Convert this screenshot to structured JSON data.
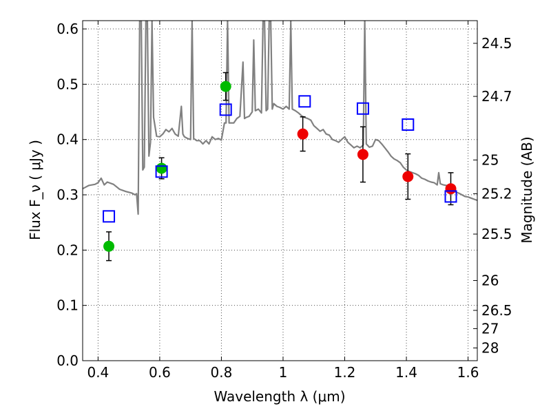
{
  "chart_data": {
    "type": "scatter",
    "xlabel": "Wavelength  λ (μm)",
    "ylabel": "Flux  F_ν  ( μJy )",
    "y2label": "Magnitude (AB)",
    "xlim": [
      0.35,
      1.63
    ],
    "ylim": [
      0.0,
      0.615
    ],
    "grid": true,
    "x_ticks": [
      0.4,
      0.6,
      0.8,
      1.0,
      1.2,
      1.4,
      1.6
    ],
    "x_tick_labels": [
      "0.4",
      "0.6",
      "0.8",
      "1",
      "1.2",
      "1.4",
      "1.6"
    ],
    "y_ticks": [
      0.0,
      0.1,
      0.2,
      0.3,
      0.4,
      0.5,
      0.6
    ],
    "y_tick_labels": [
      "0.0",
      "0.1",
      "0.2",
      "0.3",
      "0.4",
      "0.5",
      "0.6"
    ],
    "y2_ticks": [
      {
        "label": "24.5",
        "flux": 0.574
      },
      {
        "label": "24.7",
        "flux": 0.478
      },
      {
        "label": "25",
        "flux": 0.363
      },
      {
        "label": "25.2",
        "flux": 0.302
      },
      {
        "label": "25.5",
        "flux": 0.229
      },
      {
        "label": "26",
        "flux": 0.145
      },
      {
        "label": "26.5",
        "flux": 0.091
      },
      {
        "label": "27",
        "flux": 0.058
      },
      {
        "label": "28",
        "flux": 0.023
      }
    ],
    "series": [
      {
        "marker": "circle",
        "color": "#00bb00",
        "points": [
          {
            "x": 0.435,
            "y": 0.207,
            "err": 0.026
          },
          {
            "x": 0.606,
            "y": 0.348,
            "err": 0.019
          },
          {
            "x": 0.814,
            "y": 0.496,
            "err": 0.025
          }
        ]
      },
      {
        "marker": "circle",
        "color": "#ee0000",
        "points": [
          {
            "x": 1.064,
            "y": 0.41,
            "err": 0.031
          },
          {
            "x": 1.259,
            "y": 0.373,
            "err": 0.05
          },
          {
            "x": 1.405,
            "y": 0.333,
            "err": 0.041
          },
          {
            "x": 1.544,
            "y": 0.311,
            "err": 0.029
          }
        ]
      },
      {
        "marker": "open-square",
        "color": "#0000ff",
        "points": [
          {
            "x": 0.435,
            "y": 0.261
          },
          {
            "x": 0.606,
            "y": 0.342
          },
          {
            "x": 0.814,
            "y": 0.454
          },
          {
            "x": 1.07,
            "y": 0.469
          },
          {
            "x": 1.259,
            "y": 0.456
          },
          {
            "x": 1.405,
            "y": 0.427
          },
          {
            "x": 1.544,
            "y": 0.297
          }
        ]
      },
      {
        "marker": "line",
        "color": "#808080",
        "points": [
          [
            0.35,
            0.311
          ],
          [
            0.37,
            0.317
          ],
          [
            0.39,
            0.319
          ],
          [
            0.4,
            0.322
          ],
          [
            0.41,
            0.33
          ],
          [
            0.42,
            0.318
          ],
          [
            0.43,
            0.323
          ],
          [
            0.45,
            0.319
          ],
          [
            0.47,
            0.31
          ],
          [
            0.49,
            0.306
          ],
          [
            0.51,
            0.303
          ],
          [
            0.52,
            0.3
          ],
          [
            0.525,
            0.302
          ],
          [
            0.53,
            0.265
          ],
          [
            0.535,
            0.615
          ],
          [
            0.54,
            0.615
          ],
          [
            0.545,
            0.345
          ],
          [
            0.55,
            0.35
          ],
          [
            0.555,
            0.615
          ],
          [
            0.56,
            0.615
          ],
          [
            0.565,
            0.37
          ],
          [
            0.57,
            0.395
          ],
          [
            0.575,
            0.615
          ],
          [
            0.58,
            0.44
          ],
          [
            0.59,
            0.406
          ],
          [
            0.6,
            0.405
          ],
          [
            0.61,
            0.41
          ],
          [
            0.62,
            0.418
          ],
          [
            0.63,
            0.414
          ],
          [
            0.64,
            0.42
          ],
          [
            0.65,
            0.41
          ],
          [
            0.66,
            0.406
          ],
          [
            0.67,
            0.46
          ],
          [
            0.675,
            0.41
          ],
          [
            0.68,
            0.405
          ],
          [
            0.69,
            0.402
          ],
          [
            0.7,
            0.4
          ],
          [
            0.705,
            0.615
          ],
          [
            0.71,
            0.402
          ],
          [
            0.72,
            0.398
          ],
          [
            0.73,
            0.398
          ],
          [
            0.74,
            0.392
          ],
          [
            0.75,
            0.398
          ],
          [
            0.76,
            0.392
          ],
          [
            0.77,
            0.405
          ],
          [
            0.78,
            0.4
          ],
          [
            0.79,
            0.402
          ],
          [
            0.8,
            0.399
          ],
          [
            0.81,
            0.43
          ],
          [
            0.815,
            0.43
          ],
          [
            0.82,
            0.615
          ],
          [
            0.825,
            0.43
          ],
          [
            0.83,
            0.43
          ],
          [
            0.84,
            0.43
          ],
          [
            0.85,
            0.438
          ],
          [
            0.86,
            0.442
          ],
          [
            0.87,
            0.54
          ],
          [
            0.875,
            0.438
          ],
          [
            0.88,
            0.44
          ],
          [
            0.89,
            0.442
          ],
          [
            0.9,
            0.45
          ],
          [
            0.905,
            0.58
          ],
          [
            0.91,
            0.452
          ],
          [
            0.92,
            0.455
          ],
          [
            0.93,
            0.448
          ],
          [
            0.935,
            0.615
          ],
          [
            0.94,
            0.615
          ],
          [
            0.945,
            0.452
          ],
          [
            0.95,
            0.455
          ],
          [
            0.955,
            0.615
          ],
          [
            0.96,
            0.615
          ],
          [
            0.965,
            0.455
          ],
          [
            0.97,
            0.465
          ],
          [
            0.98,
            0.46
          ],
          [
            0.99,
            0.458
          ],
          [
            1.0,
            0.455
          ],
          [
            1.01,
            0.46
          ],
          [
            1.02,
            0.455
          ],
          [
            1.025,
            0.615
          ],
          [
            1.03,
            0.455
          ],
          [
            1.04,
            0.452
          ],
          [
            1.05,
            0.448
          ],
          [
            1.06,
            0.443
          ],
          [
            1.07,
            0.44
          ],
          [
            1.08,
            0.438
          ],
          [
            1.09,
            0.435
          ],
          [
            1.1,
            0.425
          ],
          [
            1.11,
            0.42
          ],
          [
            1.12,
            0.415
          ],
          [
            1.13,
            0.418
          ],
          [
            1.14,
            0.41
          ],
          [
            1.15,
            0.408
          ],
          [
            1.16,
            0.4
          ],
          [
            1.17,
            0.398
          ],
          [
            1.18,
            0.395
          ],
          [
            1.19,
            0.4
          ],
          [
            1.2,
            0.405
          ],
          [
            1.21,
            0.395
          ],
          [
            1.22,
            0.39
          ],
          [
            1.23,
            0.385
          ],
          [
            1.24,
            0.388
          ],
          [
            1.25,
            0.385
          ],
          [
            1.26,
            0.39
          ],
          [
            1.265,
            0.615
          ],
          [
            1.27,
            0.392
          ],
          [
            1.28,
            0.386
          ],
          [
            1.29,
            0.388
          ],
          [
            1.3,
            0.4
          ],
          [
            1.31,
            0.398
          ],
          [
            1.32,
            0.392
          ],
          [
            1.33,
            0.385
          ],
          [
            1.34,
            0.378
          ],
          [
            1.35,
            0.37
          ],
          [
            1.36,
            0.365
          ],
          [
            1.37,
            0.362
          ],
          [
            1.38,
            0.358
          ],
          [
            1.39,
            0.35
          ],
          [
            1.4,
            0.345
          ],
          [
            1.41,
            0.342
          ],
          [
            1.42,
            0.34
          ],
          [
            1.43,
            0.338
          ],
          [
            1.44,
            0.335
          ],
          [
            1.45,
            0.33
          ],
          [
            1.46,
            0.328
          ],
          [
            1.47,
            0.325
          ],
          [
            1.48,
            0.323
          ],
          [
            1.49,
            0.322
          ],
          [
            1.5,
            0.318
          ],
          [
            1.505,
            0.34
          ],
          [
            1.51,
            0.32
          ],
          [
            1.52,
            0.318
          ],
          [
            1.53,
            0.317
          ],
          [
            1.54,
            0.314
          ],
          [
            1.55,
            0.31
          ],
          [
            1.56,
            0.305
          ],
          [
            1.57,
            0.303
          ],
          [
            1.58,
            0.3
          ],
          [
            1.59,
            0.297
          ],
          [
            1.6,
            0.296
          ],
          [
            1.61,
            0.294
          ],
          [
            1.62,
            0.292
          ],
          [
            1.63,
            0.29
          ]
        ]
      }
    ]
  }
}
